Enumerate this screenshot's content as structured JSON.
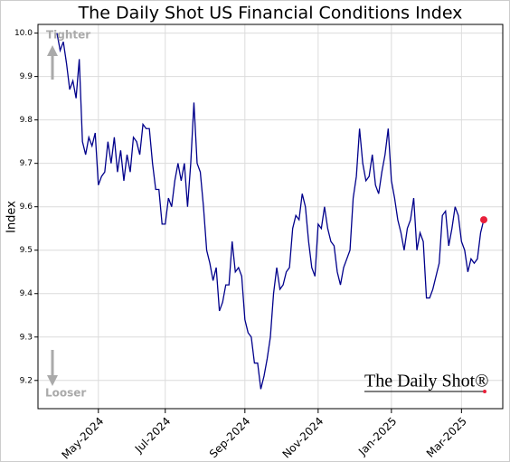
{
  "chart_data": {
    "type": "line",
    "title": "The Daily Shot US Financial Conditions Index",
    "y_label": "Index",
    "annotations": [
      "Tighter",
      "Looser"
    ],
    "logo": "The Daily Shot®",
    "grid": true,
    "categories": [
      null,
      null,
      null,
      null,
      null,
      null,
      null,
      null,
      null,
      null,
      null,
      null,
      null,
      "May-2024",
      null,
      null,
      null,
      null,
      null,
      null,
      null,
      null,
      null,
      null,
      null,
      null,
      null,
      null,
      null,
      null,
      null,
      null,
      null,
      null,
      "Jul-2024",
      null,
      null,
      null,
      null,
      null,
      null,
      null,
      null,
      null,
      null,
      null,
      null,
      null,
      null,
      null,
      null,
      null,
      null,
      null,
      null,
      null,
      null,
      null,
      null,
      "Sep-2024",
      null,
      null,
      null,
      null,
      null,
      null,
      null,
      null,
      null,
      null,
      null,
      null,
      null,
      null,
      null,
      null,
      null,
      null,
      null,
      null,
      null,
      null,
      "Nov-2024",
      null,
      null,
      null,
      null,
      null,
      null,
      null,
      null,
      null,
      null,
      null,
      null,
      null,
      null,
      null,
      null,
      null,
      null,
      null,
      null,
      null,
      null,
      "Jan-2025",
      null,
      null,
      null,
      null,
      null,
      null,
      null,
      null,
      null,
      null,
      null,
      null,
      null,
      null,
      null,
      null,
      null,
      null,
      null,
      null,
      null,
      "Mar-2025",
      null,
      null,
      null,
      null,
      null,
      null,
      null
    ],
    "series": [
      {
        "name": "US Financial Conditions Index",
        "color": "#00008b",
        "last_point_color": "#e8203a",
        "values": [
          10.0,
          9.96,
          9.98,
          9.93,
          9.87,
          9.89,
          9.85,
          9.94,
          9.75,
          9.72,
          9.76,
          9.74,
          9.77,
          9.65,
          9.67,
          9.68,
          9.75,
          9.7,
          9.76,
          9.68,
          9.73,
          9.66,
          9.72,
          9.68,
          9.76,
          9.75,
          9.72,
          9.79,
          9.78,
          9.78,
          9.7,
          9.64,
          9.64,
          9.56,
          9.56,
          9.62,
          9.6,
          9.66,
          9.7,
          9.66,
          9.7,
          9.6,
          9.7,
          9.84,
          9.7,
          9.68,
          9.6,
          9.5,
          9.47,
          9.43,
          9.46,
          9.36,
          9.38,
          9.42,
          9.42,
          9.52,
          9.45,
          9.46,
          9.44,
          9.34,
          9.31,
          9.3,
          9.24,
          9.24,
          9.18,
          9.21,
          9.25,
          9.3,
          9.4,
          9.46,
          9.41,
          9.42,
          9.45,
          9.46,
          9.55,
          9.58,
          9.57,
          9.63,
          9.6,
          9.52,
          9.46,
          9.44,
          9.56,
          9.55,
          9.6,
          9.55,
          9.52,
          9.51,
          9.45,
          9.42,
          9.46,
          9.48,
          9.5,
          9.62,
          9.67,
          9.78,
          9.7,
          9.66,
          9.67,
          9.72,
          9.65,
          9.63,
          9.68,
          9.72,
          9.78,
          9.66,
          9.62,
          9.57,
          9.54,
          9.5,
          9.55,
          9.57,
          9.62,
          9.5,
          9.54,
          9.52,
          9.39,
          9.39,
          9.41,
          9.44,
          9.47,
          9.58,
          9.59,
          9.51,
          9.55,
          9.6,
          9.58,
          9.52,
          9.5,
          9.45,
          9.48,
          9.47,
          9.48,
          9.54,
          9.57
        ]
      }
    ],
    "ylim": [
      9.135,
      10.02
    ],
    "yticks": [
      9.2,
      9.3,
      9.4,
      9.5,
      9.6,
      9.7,
      9.8,
      9.9,
      {
        "value": 10,
        "label": "10.0"
      }
    ]
  }
}
